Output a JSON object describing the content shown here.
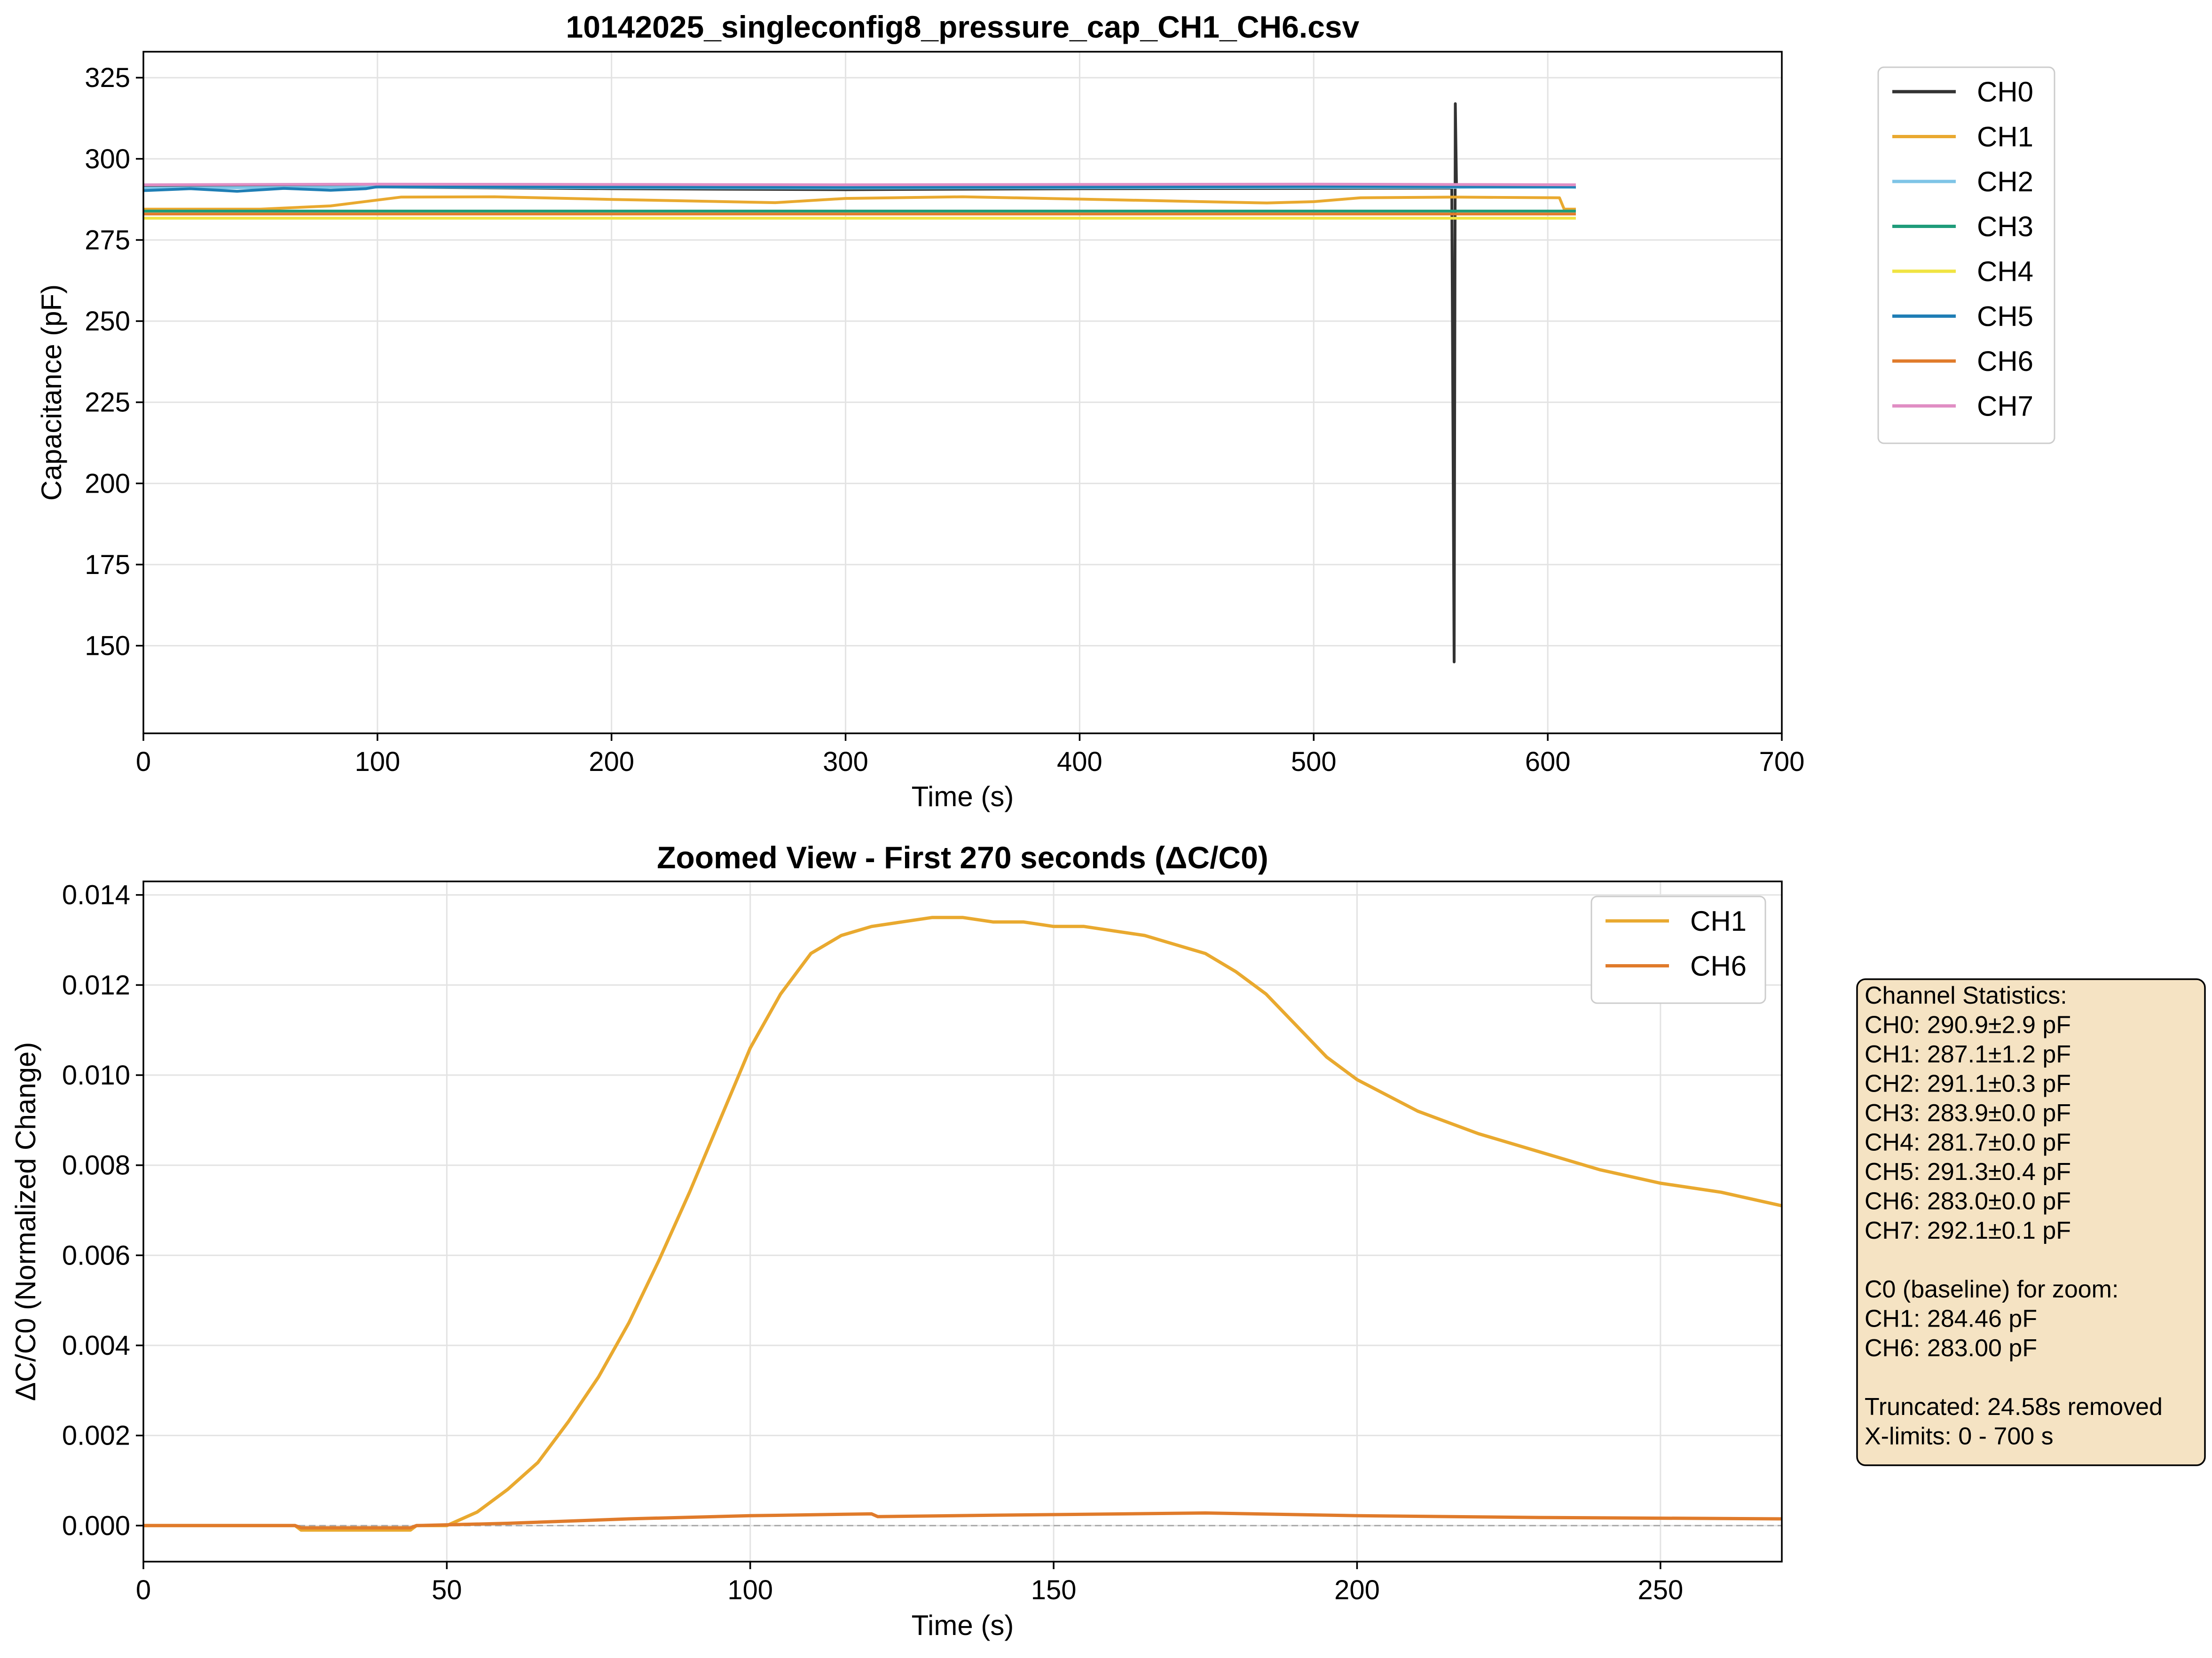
{
  "chart_data": [
    {
      "type": "line",
      "title": "10142025_singleconfig8_pressure_cap_CH1_CH6.csv",
      "xlabel": "Time (s)",
      "ylabel": "Capacitance (pF)",
      "xlim": [
        0,
        700
      ],
      "ylim": [
        123,
        333
      ],
      "xticks": [
        0,
        100,
        200,
        300,
        400,
        500,
        600,
        700
      ],
      "yticks": [
        150,
        175,
        200,
        225,
        250,
        275,
        300,
        325
      ],
      "grid": true,
      "legend_position": "outside-right",
      "series": [
        {
          "name": "CH0",
          "color": "#333333",
          "x": [
            0,
            100,
            200,
            300,
            400,
            500,
            559,
            560,
            560.5,
            561,
            562,
            600,
            612
          ],
          "y": [
            291.5,
            291.3,
            290.8,
            290.5,
            290.8,
            290.9,
            291.0,
            145,
            317,
            291.5,
            291.2,
            291.3,
            291.2
          ]
        },
        {
          "name": "CH1",
          "color": "#E9A92F",
          "x": [
            0,
            50,
            80,
            110,
            150,
            200,
            270,
            300,
            350,
            400,
            480,
            500,
            520,
            560,
            605,
            607,
            612
          ],
          "y": [
            284.5,
            284.5,
            285.5,
            288.2,
            288.3,
            287.5,
            286.5,
            287.8,
            288.3,
            287.6,
            286.4,
            286.8,
            288.0,
            288.2,
            288.0,
            284.5,
            284.5
          ]
        },
        {
          "name": "CH2",
          "color": "#7EC4E6",
          "x": [
            0,
            100,
            200,
            300,
            400,
            500,
            612
          ],
          "y": [
            291.0,
            291.3,
            291.1,
            291.0,
            291.1,
            291.2,
            291.2
          ]
        },
        {
          "name": "CH3",
          "color": "#1F9C7A",
          "x": [
            0,
            300,
            612
          ],
          "y": [
            283.9,
            283.9,
            283.9
          ]
        },
        {
          "name": "CH4",
          "color": "#F0E442",
          "x": [
            0,
            300,
            612
          ],
          "y": [
            281.7,
            281.7,
            281.7
          ]
        },
        {
          "name": "CH5",
          "color": "#1F7EB5",
          "x": [
            0,
            20,
            40,
            60,
            80,
            95,
            100,
            200,
            300,
            400,
            500,
            612
          ],
          "y": [
            290.2,
            290.8,
            290.0,
            290.9,
            290.3,
            290.8,
            291.4,
            291.3,
            291.2,
            291.3,
            291.5,
            291.4
          ]
        },
        {
          "name": "CH6",
          "color": "#E07B2B",
          "x": [
            0,
            300,
            612
          ],
          "y": [
            283.0,
            283.0,
            283.0
          ]
        },
        {
          "name": "CH7",
          "color": "#E08EC4",
          "x": [
            0,
            100,
            200,
            300,
            400,
            500,
            612
          ],
          "y": [
            292.0,
            292.2,
            292.1,
            292.0,
            292.1,
            292.2,
            292.0
          ]
        }
      ]
    },
    {
      "type": "line",
      "title": "Zoomed View - First 270 seconds (ΔC/C0)",
      "xlabel": "Time (s)",
      "ylabel": "ΔC/C0 (Normalized Change)",
      "xlim": [
        0,
        270
      ],
      "ylim": [
        -0.0008,
        0.0143
      ],
      "xticks": [
        0,
        50,
        100,
        150,
        200,
        250
      ],
      "yticks": [
        0.0,
        0.002,
        0.004,
        0.006,
        0.008,
        0.01,
        0.012,
        0.014
      ],
      "ytick_labels": [
        "0.000",
        "0.002",
        "0.004",
        "0.006",
        "0.008",
        "0.010",
        "0.012",
        "0.014"
      ],
      "grid": true,
      "legend_position": "upper right",
      "reference_line": 0,
      "series": [
        {
          "name": "CH1",
          "color": "#E9A92F",
          "x": [
            0,
            25,
            26,
            40,
            44,
            45,
            50,
            55,
            60,
            65,
            70,
            75,
            80,
            85,
            90,
            95,
            100,
            105,
            110,
            115,
            120,
            125,
            130,
            135,
            140,
            145,
            150,
            155,
            160,
            165,
            170,
            175,
            180,
            185,
            190,
            195,
            200,
            210,
            220,
            230,
            240,
            250,
            260,
            270
          ],
          "y": [
            0.0,
            0.0,
            -0.0001,
            -0.0001,
            -0.0001,
            0.0,
            0.0,
            0.0003,
            0.0008,
            0.0014,
            0.0023,
            0.0033,
            0.0045,
            0.0059,
            0.0074,
            0.009,
            0.0106,
            0.0118,
            0.0127,
            0.0131,
            0.0133,
            0.0134,
            0.0135,
            0.0135,
            0.0134,
            0.0134,
            0.0133,
            0.0133,
            0.0132,
            0.0131,
            0.0129,
            0.0127,
            0.0123,
            0.0118,
            0.0111,
            0.0104,
            0.0099,
            0.0092,
            0.0087,
            0.0083,
            0.0079,
            0.0076,
            0.0074,
            0.0071
          ]
        },
        {
          "name": "CH6",
          "color": "#E07B2B",
          "x": [
            0,
            25,
            26,
            44,
            45,
            60,
            80,
            100,
            120,
            121,
            140,
            175,
            200,
            230,
            270
          ],
          "y": [
            0.0,
            0.0,
            -5e-05,
            -5e-05,
            0.0,
            5e-05,
            0.00015,
            0.00022,
            0.00026,
            0.0002,
            0.00023,
            0.00028,
            0.00022,
            0.00018,
            0.00015
          ]
        }
      ]
    }
  ],
  "statistics_box": {
    "lines": [
      "Channel Statistics:",
      "CH0: 290.9±2.9 pF",
      "CH1: 287.1±1.2 pF",
      "CH2: 291.1±0.3 pF",
      "CH3: 283.9±0.0 pF",
      "CH4: 281.7±0.0 pF",
      "CH5: 291.3±0.4 pF",
      "CH6: 283.0±0.0 pF",
      "CH7: 292.1±0.1 pF",
      "",
      "C0 (baseline) for zoom:",
      "CH1: 284.46 pF",
      "CH6: 283.00 pF",
      "",
      "Truncated: 24.58s removed",
      "X-limits: 0 - 700 s"
    ],
    "background": "#F5E3C3"
  }
}
